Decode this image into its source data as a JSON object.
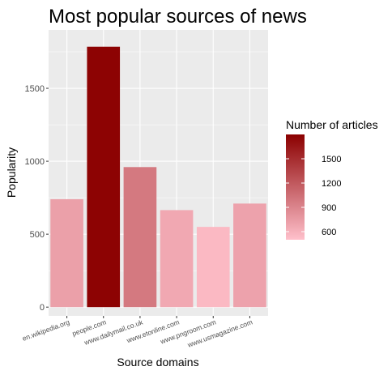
{
  "chart_data": {
    "type": "bar",
    "title": "Most popular sources of news",
    "xlabel": "Source domains",
    "ylabel": "Popularity",
    "categories": [
      "en.wikipedia.org",
      "people.com",
      "www.dailymail.co.uk",
      "www.etonline.com",
      "www.pngroom.com",
      "www.usmagazine.com"
    ],
    "values": [
      740,
      1785,
      960,
      665,
      550,
      710
    ],
    "fill_values": [
      720,
      1780,
      980,
      660,
      550,
      700
    ],
    "ylim": [
      -60,
      1900
    ],
    "yticks": [
      0,
      500,
      1000,
      1500
    ],
    "grid": true,
    "legend": {
      "title": "Number of articles",
      "position": "right",
      "range": [
        500,
        1800
      ],
      "ticks": [
        600,
        900,
        1200,
        1500
      ],
      "low_color": "#ffc0cb",
      "high_color": "#8b0000"
    },
    "panel_background": "#ebebeb",
    "grid_color": "#ffffff"
  }
}
